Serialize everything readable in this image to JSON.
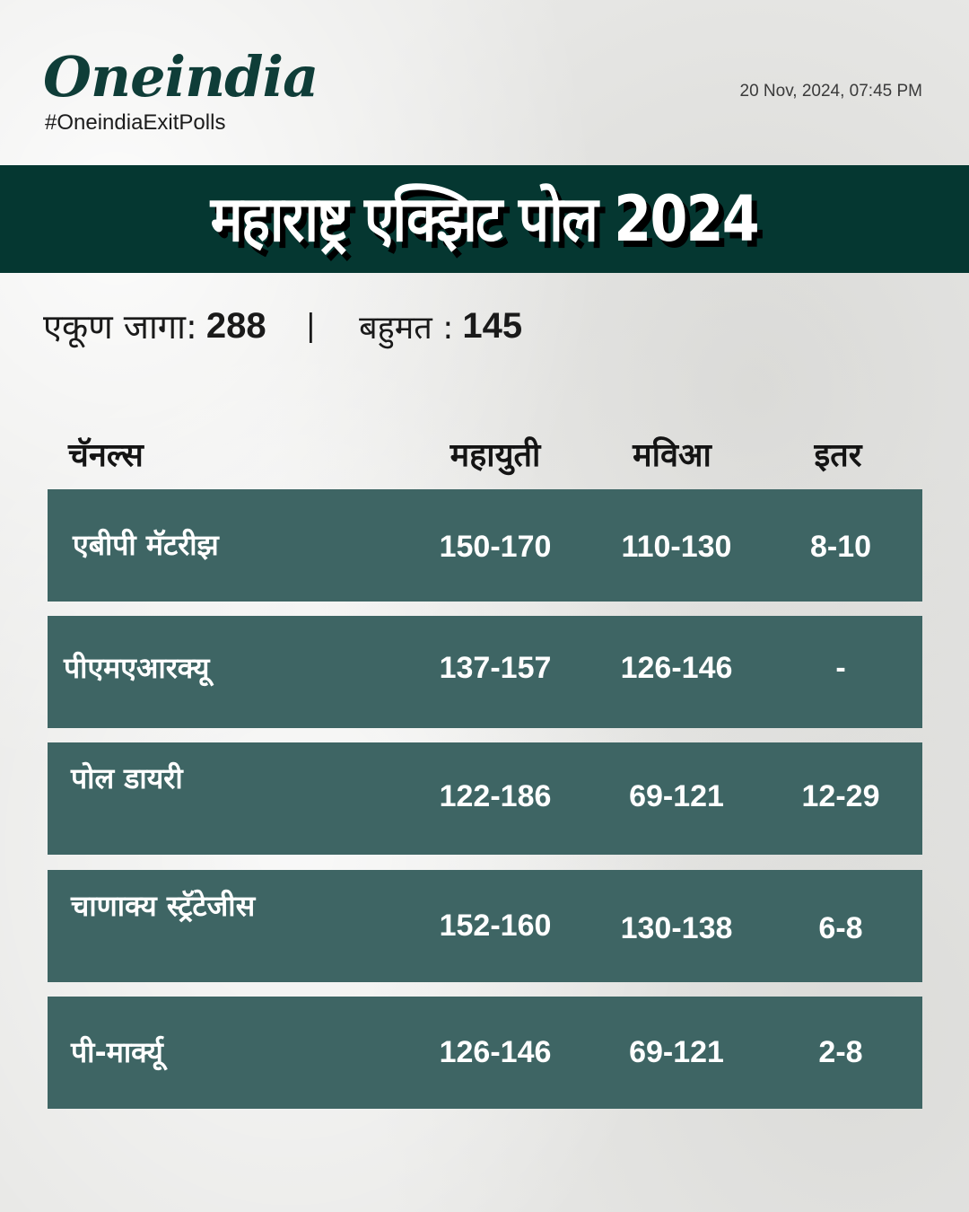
{
  "header": {
    "logo": "Oneindia",
    "hashtag": "#OneindiaExitPolls",
    "timestamp": "20 Nov, 2024, 07:45 PM"
  },
  "banner": {
    "title": "महाराष्ट्र एक्झिट पोल 2024"
  },
  "summary": {
    "total_label": "एकूण जागा:",
    "total_value": "288",
    "separator": "|",
    "majority_label": "बहुमत :",
    "majority_value": "145"
  },
  "table": {
    "headers": [
      "चॅनल्स",
      "महायुती",
      "मविआ",
      "इतर"
    ],
    "rows": [
      {
        "channel": "एबीपी मॅटरीझ",
        "mahayuti": "150-170",
        "mva": "110-130",
        "others": "8-10"
      },
      {
        "channel": "पीएमएआरक्यू",
        "mahayuti": "137-157",
        "mva": "126-146",
        "others": "-"
      },
      {
        "channel": "पोल डायरी",
        "mahayuti": "122-186",
        "mva": "69-121",
        "others": "12-29"
      },
      {
        "channel": "चाणाक्य स्ट्रॅटेजीस",
        "mahayuti": "152-160",
        "mva": "130-138",
        "others": "6-8"
      },
      {
        "channel": "पी-मार्क्यू",
        "mahayuti": "126-146",
        "mva": "69-121",
        "others": "2-8"
      }
    ]
  },
  "colors": {
    "banner_bg": "#053731",
    "row_bg": "#3e6564",
    "logo": "#0f3d38"
  }
}
